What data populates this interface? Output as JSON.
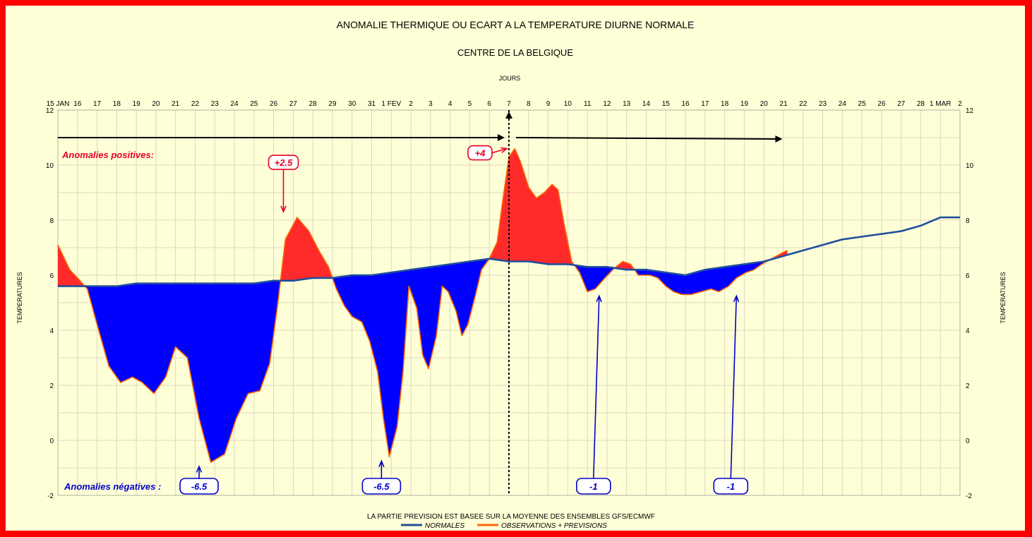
{
  "chart_data": {
    "type": "area",
    "title": "ANOMALIE THERMIQUE OU ECART A LA TEMPERATURE DIURNE NORMALE",
    "subtitle": "CENTRE DE LA BELGIQUE",
    "xlabel": "JOURS",
    "ylabel_left": "TEMPERATURES",
    "ylabel_right": "TEMPERATURES",
    "footnote": "LA PARTIE PREVISION EST BASEE SUR LA MOYENNE DES ENSEMBLES GFS/ECMWF",
    "ylim": [
      -2,
      12
    ],
    "yticks": [
      -2,
      0,
      2,
      4,
      6,
      8,
      10,
      12
    ],
    "xlim": [
      0,
      46
    ],
    "x_tick_labels": [
      "15 JAN",
      "16",
      "17",
      "18",
      "19",
      "20",
      "21",
      "22",
      "23",
      "24",
      "25",
      "26",
      "27",
      "28",
      "29",
      "30",
      "31",
      "1 FEV",
      "2",
      "3",
      "4",
      "5",
      "6",
      "7",
      "8",
      "9",
      "10",
      "11",
      "12",
      "13",
      "14",
      "15",
      "16",
      "17",
      "18",
      "19",
      "20",
      "21",
      "22",
      "23",
      "24",
      "25",
      "26",
      "27",
      "28",
      "1 MAR",
      "2"
    ],
    "grid": true,
    "legend_position": "bottom",
    "series": [
      {
        "name": "NORMALES",
        "color": "#1f4e9c",
        "x": [
          0,
          1,
          2,
          3,
          4,
          5,
          6,
          7,
          8,
          9,
          10,
          11,
          12,
          13,
          14,
          15,
          16,
          17,
          18,
          19,
          20,
          21,
          22,
          23,
          24,
          25,
          26,
          27,
          28,
          29,
          30,
          31,
          32,
          33,
          34,
          35,
          36,
          37,
          38,
          39,
          40,
          41,
          42,
          43,
          44,
          45,
          46
        ],
        "values": [
          5.6,
          5.6,
          5.6,
          5.6,
          5.7,
          5.7,
          5.7,
          5.7,
          5.7,
          5.7,
          5.7,
          5.8,
          5.8,
          5.9,
          5.9,
          6.0,
          6.0,
          6.1,
          6.2,
          6.3,
          6.4,
          6.5,
          6.6,
          6.5,
          6.5,
          6.4,
          6.4,
          6.3,
          6.3,
          6.2,
          6.2,
          6.1,
          6.0,
          6.2,
          6.3,
          6.4,
          6.5,
          6.7,
          6.9,
          7.1,
          7.3,
          7.4,
          7.5,
          7.6,
          7.8,
          8.1,
          8.1
        ]
      },
      {
        "name": "OBSERVATIONS + PREVISIONS",
        "color": "#ff6600",
        "x": [
          0,
          0.6,
          1,
          1.5,
          2,
          2.6,
          3.2,
          3.8,
          4.3,
          4.9,
          5.5,
          6.0,
          6.6,
          7.2,
          7.8,
          8.5,
          9.1,
          9.7,
          10.3,
          10.8,
          11.2,
          11.6,
          12.2,
          12.8,
          13.3,
          13.8,
          14.2,
          14.6,
          15.0,
          15.5,
          15.9,
          16.3,
          16.6,
          16.9,
          17.3,
          17.6,
          17.9,
          18.3,
          18.6,
          18.9,
          19.3,
          19.6,
          19.9,
          20.3,
          20.6,
          20.9,
          21.3,
          21.6,
          22.0,
          22.4,
          22.7,
          23.0,
          23.3,
          23.6,
          24.0,
          24.4,
          24.8,
          25.2,
          25.5,
          25.8,
          26.2,
          26.6,
          27.0,
          27.4,
          27.9,
          28.3,
          28.8,
          29.2,
          29.6,
          29.9,
          30.2,
          30.6,
          31.0,
          31.4,
          31.8,
          32.3,
          32.8,
          33.3,
          33.7,
          34.2,
          34.6,
          35.1,
          35.5,
          35.9,
          36.4,
          36.9,
          37.2
        ],
        "values": [
          7.1,
          6.2,
          5.9,
          5.5,
          4.2,
          2.7,
          2.1,
          2.3,
          2.1,
          1.7,
          2.3,
          3.4,
          3.0,
          0.8,
          -0.8,
          -0.5,
          0.8,
          1.7,
          1.8,
          2.8,
          4.9,
          7.3,
          8.1,
          7.6,
          6.9,
          6.3,
          5.5,
          4.9,
          4.5,
          4.3,
          3.6,
          2.5,
          0.8,
          -0.6,
          0.5,
          2.5,
          5.6,
          4.8,
          3.1,
          2.6,
          3.8,
          5.6,
          5.4,
          4.7,
          3.8,
          4.2,
          5.3,
          6.2,
          6.6,
          7.2,
          8.8,
          10.3,
          10.6,
          10.1,
          9.2,
          8.8,
          9.0,
          9.3,
          9.1,
          7.9,
          6.5,
          6.1,
          5.4,
          5.5,
          5.9,
          6.2,
          6.5,
          6.4,
          6.0,
          6.0,
          6.0,
          5.9,
          5.6,
          5.4,
          5.3,
          5.3,
          5.4,
          5.5,
          5.4,
          5.6,
          5.9,
          6.1,
          6.2,
          6.4,
          6.6,
          6.8,
          6.9
        ]
      }
    ],
    "forecast_start_x": 23,
    "annotations": {
      "positive_label": "Anomalies positives:",
      "negative_label": "Anomalies négatives :",
      "callouts": [
        {
          "text": "+2.5",
          "x": 11.5,
          "y": 8.1,
          "sign": "positive"
        },
        {
          "text": "+4",
          "x": 23.0,
          "y": 10.6,
          "sign": "positive"
        },
        {
          "text": "-6.5",
          "x": 7.2,
          "y": -0.8,
          "sign": "negative"
        },
        {
          "text": "-6.5",
          "x": 16.5,
          "y": -0.6,
          "sign": "negative"
        },
        {
          "text": "-1",
          "x": 27.6,
          "y": 5.4,
          "sign": "negative"
        },
        {
          "text": "-1",
          "x": 34.6,
          "y": 5.4,
          "sign": "negative"
        }
      ]
    },
    "colors": {
      "positive_fill": "#ff2b2b",
      "negative_fill": "#0000ff",
      "positive_text": "#e60026",
      "negative_text": "#0000cc",
      "background": "#ffffd7",
      "border": "#ff0000"
    }
  }
}
